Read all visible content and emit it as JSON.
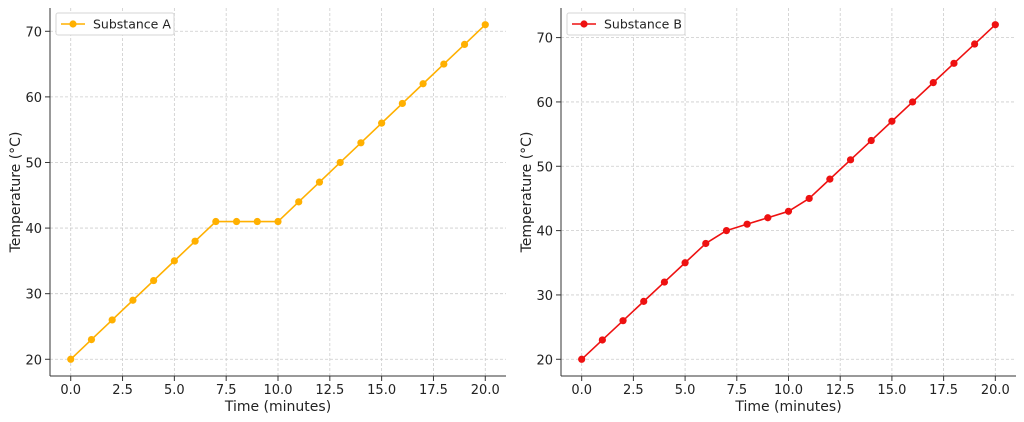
{
  "chart_data": [
    {
      "type": "line",
      "title": "",
      "xlabel": "Time (minutes)",
      "ylabel": "Temperature (°C)",
      "xlim": [
        -1,
        21
      ],
      "ylim": [
        17.45,
        73.55
      ],
      "xticks": [
        "0.0",
        "2.5",
        "5.0",
        "7.5",
        "10.0",
        "12.5",
        "15.0",
        "17.5",
        "20.0"
      ],
      "yticks": [
        "20",
        "30",
        "40",
        "50",
        "60",
        "70"
      ],
      "grid": true,
      "legend": "top-left",
      "x": [
        0,
        1,
        2,
        3,
        4,
        5,
        6,
        7,
        8,
        9,
        10,
        11,
        12,
        13,
        14,
        15,
        16,
        17,
        18,
        19,
        20
      ],
      "series": [
        {
          "name": "Substance A",
          "color": "#FFB000",
          "values": [
            20,
            23,
            26,
            29,
            32,
            35,
            38,
            41,
            41,
            41,
            41,
            44,
            47,
            50,
            53,
            56,
            59,
            62,
            65,
            68,
            71
          ]
        }
      ]
    },
    {
      "type": "line",
      "title": "",
      "xlabel": "Time (minutes)",
      "ylabel": "Temperature (°C)",
      "xlim": [
        -1,
        21
      ],
      "ylim": [
        17.4,
        74.6
      ],
      "xticks": [
        "0.0",
        "2.5",
        "5.0",
        "7.5",
        "10.0",
        "12.5",
        "15.0",
        "17.5",
        "20.0"
      ],
      "yticks": [
        "20",
        "30",
        "40",
        "50",
        "60",
        "70"
      ],
      "grid": true,
      "legend": "top-left",
      "x": [
        0,
        1,
        2,
        3,
        4,
        5,
        6,
        7,
        8,
        9,
        10,
        11,
        12,
        13,
        14,
        15,
        16,
        17,
        18,
        19,
        20
      ],
      "series": [
        {
          "name": "Substance B",
          "color": "#EE1111",
          "values": [
            20,
            23,
            26,
            29,
            32,
            35,
            38,
            40,
            41,
            42,
            43,
            45,
            48,
            51,
            54,
            57,
            60,
            63,
            66,
            69,
            72
          ]
        }
      ]
    }
  ]
}
